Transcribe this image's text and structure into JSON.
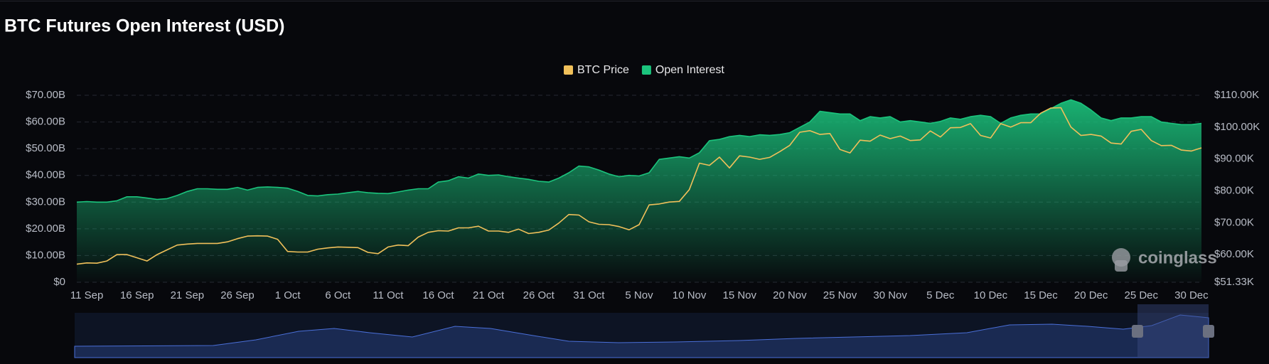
{
  "chart_data": {
    "type": "area_line",
    "title": "BTC Futures Open Interest (USD)",
    "watermark": "coinglass",
    "categories": [
      null,
      "11 Sep",
      null,
      null,
      null,
      null,
      "16 Sep",
      null,
      null,
      null,
      null,
      "21 Sep",
      null,
      null,
      null,
      null,
      "26 Sep",
      null,
      null,
      null,
      null,
      "1 Oct",
      null,
      null,
      null,
      null,
      "6 Oct",
      null,
      null,
      null,
      null,
      "11 Oct",
      null,
      null,
      null,
      null,
      "16 Oct",
      null,
      null,
      null,
      null,
      "21 Oct",
      null,
      null,
      null,
      null,
      "26 Oct",
      null,
      null,
      null,
      null,
      "31 Oct",
      null,
      null,
      null,
      null,
      "5 Nov",
      null,
      null,
      null,
      null,
      "10 Nov",
      null,
      null,
      null,
      null,
      "15 Nov",
      null,
      null,
      null,
      null,
      "20 Nov",
      null,
      null,
      null,
      null,
      "25 Nov",
      null,
      null,
      null,
      null,
      "30 Nov",
      null,
      null,
      null,
      null,
      "5 Dec",
      null,
      null,
      null,
      null,
      "10 Dec",
      null,
      null,
      null,
      null,
      "15 Dec",
      null,
      null,
      null,
      null,
      "20 Dec",
      null,
      null,
      null,
      null,
      "25 Dec",
      null,
      null,
      null,
      null,
      "30 Dec",
      null
    ],
    "series": [
      {
        "name": "BTC Price",
        "color": "#f0c05a",
        "axis": "y2",
        "values": [
          57,
          57.4,
          57.3,
          58,
          60,
          60,
          59,
          58,
          60,
          61.5,
          63,
          63.3,
          63.5,
          63.5,
          63.5,
          64,
          65,
          65.8,
          65.9,
          65.8,
          64.8,
          61,
          60.8,
          60.8,
          61.7,
          62.1,
          62.4,
          62.3,
          62.2,
          60.7,
          60.3,
          62.4,
          63,
          62.8,
          65.5,
          67,
          67.5,
          67.4,
          68.4,
          68.4,
          68.9,
          67.4,
          67.4,
          67,
          68,
          66.6,
          67,
          67.7,
          69.9,
          72.6,
          72.4,
          70.3,
          69.5,
          69.4,
          68.8,
          67.8,
          69.4,
          75.6,
          75.9,
          76.5,
          76.7,
          80.4,
          88.7,
          88,
          90.6,
          87.2,
          91,
          90.6,
          89.9,
          90.5,
          92.3,
          94.3,
          98.4,
          98.9,
          97.7,
          98,
          93,
          91.9,
          95.9,
          95.6,
          97.5,
          96.4,
          97.2,
          95.8,
          96,
          98.8,
          96.9,
          99.8,
          99.9,
          101.1,
          97.4,
          96.6,
          101.1,
          100,
          101.4,
          101.4,
          104.4,
          106,
          106.1,
          100,
          97.4,
          97.7,
          97.2,
          95,
          94.7,
          98.7,
          99.3,
          95.8,
          94.2,
          94.3,
          92.8,
          92.5,
          93.5
        ]
      },
      {
        "name": "Open Interest",
        "color": "#1bc47d",
        "axis": "y",
        "values": [
          30,
          30.2,
          30,
          30,
          30.5,
          32,
          32,
          31.5,
          31,
          31.3,
          32.5,
          34,
          35,
          35,
          34.8,
          34.8,
          35.5,
          34.5,
          35.5,
          35.7,
          35.5,
          35.2,
          34,
          32.5,
          32.3,
          32.8,
          33,
          33.5,
          34,
          33.5,
          33.3,
          33.2,
          33.8,
          34.5,
          35,
          35,
          37.5,
          38,
          39.5,
          39,
          40.5,
          40,
          40.2,
          39.5,
          39,
          38.5,
          37.8,
          37.5,
          39,
          41,
          43.5,
          43.2,
          42,
          40.5,
          39.5,
          40,
          39.8,
          41,
          46,
          46.5,
          47,
          46.5,
          48.5,
          53,
          53.5,
          54.5,
          55,
          54.5,
          55.2,
          55,
          55.3,
          56,
          58,
          60,
          64,
          63.5,
          63,
          63,
          60.5,
          62,
          61.5,
          62,
          60,
          60.5,
          60,
          59.5,
          60.2,
          61.5,
          61,
          62,
          62.5,
          62,
          59.5,
          61.5,
          62.5,
          63,
          63,
          65,
          67,
          68.3,
          67,
          64.5,
          61.5,
          60.5,
          61.5,
          61.5,
          62,
          62,
          60,
          59.5,
          59,
          59,
          59.5
        ]
      }
    ],
    "ylim": [
      0,
      70
    ],
    "yticks": [
      {
        "value": 0,
        "label": "$0"
      },
      {
        "value": 10,
        "label": "$10.00B"
      },
      {
        "value": 20,
        "label": "$20.00B"
      },
      {
        "value": 30,
        "label": "$30.00B"
      },
      {
        "value": 40,
        "label": "$40.00B"
      },
      {
        "value": 50,
        "label": "$50.00B"
      },
      {
        "value": 60,
        "label": "$60.00B"
      },
      {
        "value": 70,
        "label": "$70.00B"
      }
    ],
    "y2lim": [
      51.33,
      110
    ],
    "y2ticks": [
      {
        "value": 51.33,
        "label": "$51.33K"
      },
      {
        "value": 60,
        "label": "$60.00K"
      },
      {
        "value": 70,
        "label": "$70.00K"
      },
      {
        "value": 80,
        "label": "$80.00K"
      },
      {
        "value": 90,
        "label": "$90.00K"
      },
      {
        "value": 100,
        "label": "$100.00K"
      },
      {
        "value": 110,
        "label": "$110.00K"
      }
    ],
    "grid": true,
    "legend": "top"
  }
}
